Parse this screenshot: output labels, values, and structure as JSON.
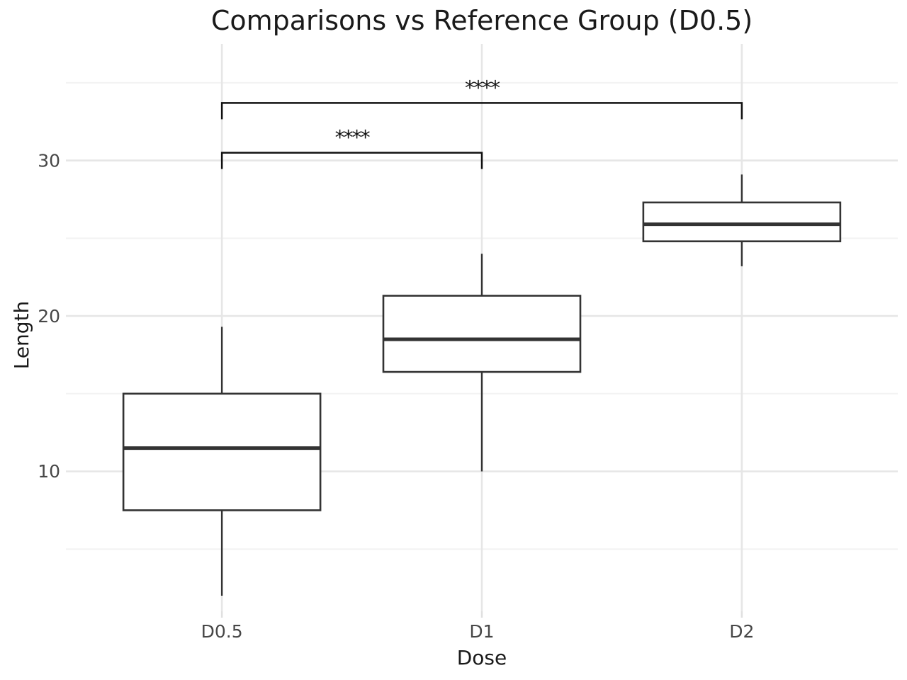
{
  "chart_data": {
    "type": "boxplot",
    "title": "Comparisons vs Reference Group (D0.5)",
    "xlabel": "Dose",
    "ylabel": "Length",
    "categories": [
      "D0.5",
      "D1",
      "D2"
    ],
    "y_tick_labels": [
      "10",
      "20",
      "30"
    ],
    "y_ticks": [
      10,
      20,
      30
    ],
    "y_minor_ticks": [
      5,
      15,
      25,
      35
    ],
    "ylim": [
      1.0,
      37.5
    ],
    "grid": "major-and-minor, light gray on white, no axis lines, no panel border",
    "legend": "none",
    "boxes": [
      {
        "category": "D0.5",
        "whisker_low": 2.0,
        "q1": 7.5,
        "median": 11.5,
        "q3": 15.0,
        "whisker_high": 19.3
      },
      {
        "category": "D1",
        "whisker_low": 10.0,
        "q1": 16.4,
        "median": 18.5,
        "q3": 21.3,
        "whisker_high": 24.0
      },
      {
        "category": "D2",
        "whisker_low": 23.2,
        "q1": 24.8,
        "median": 25.9,
        "q3": 27.3,
        "whisker_high": 29.1
      }
    ],
    "comparisons": [
      {
        "group1": "D0.5",
        "group2": "D1",
        "label": "****",
        "bar_y": 30.5,
        "tick_drop": 1.05
      },
      {
        "group1": "D0.5",
        "group2": "D2",
        "label": "****",
        "bar_y": 33.7,
        "tick_drop": 1.05
      }
    ],
    "colors": {
      "background": "#ffffff",
      "box_stroke": "#333333",
      "box_fill": "#ffffff",
      "median": "#333333",
      "whisker": "#333333",
      "bracket": "#101010",
      "grid_major": "#e6e6e6",
      "grid_minor": "#f3f3f3",
      "axis_tick": "#e0e0e0",
      "tick_label": "#474747",
      "text": "#1a1a1a"
    }
  }
}
